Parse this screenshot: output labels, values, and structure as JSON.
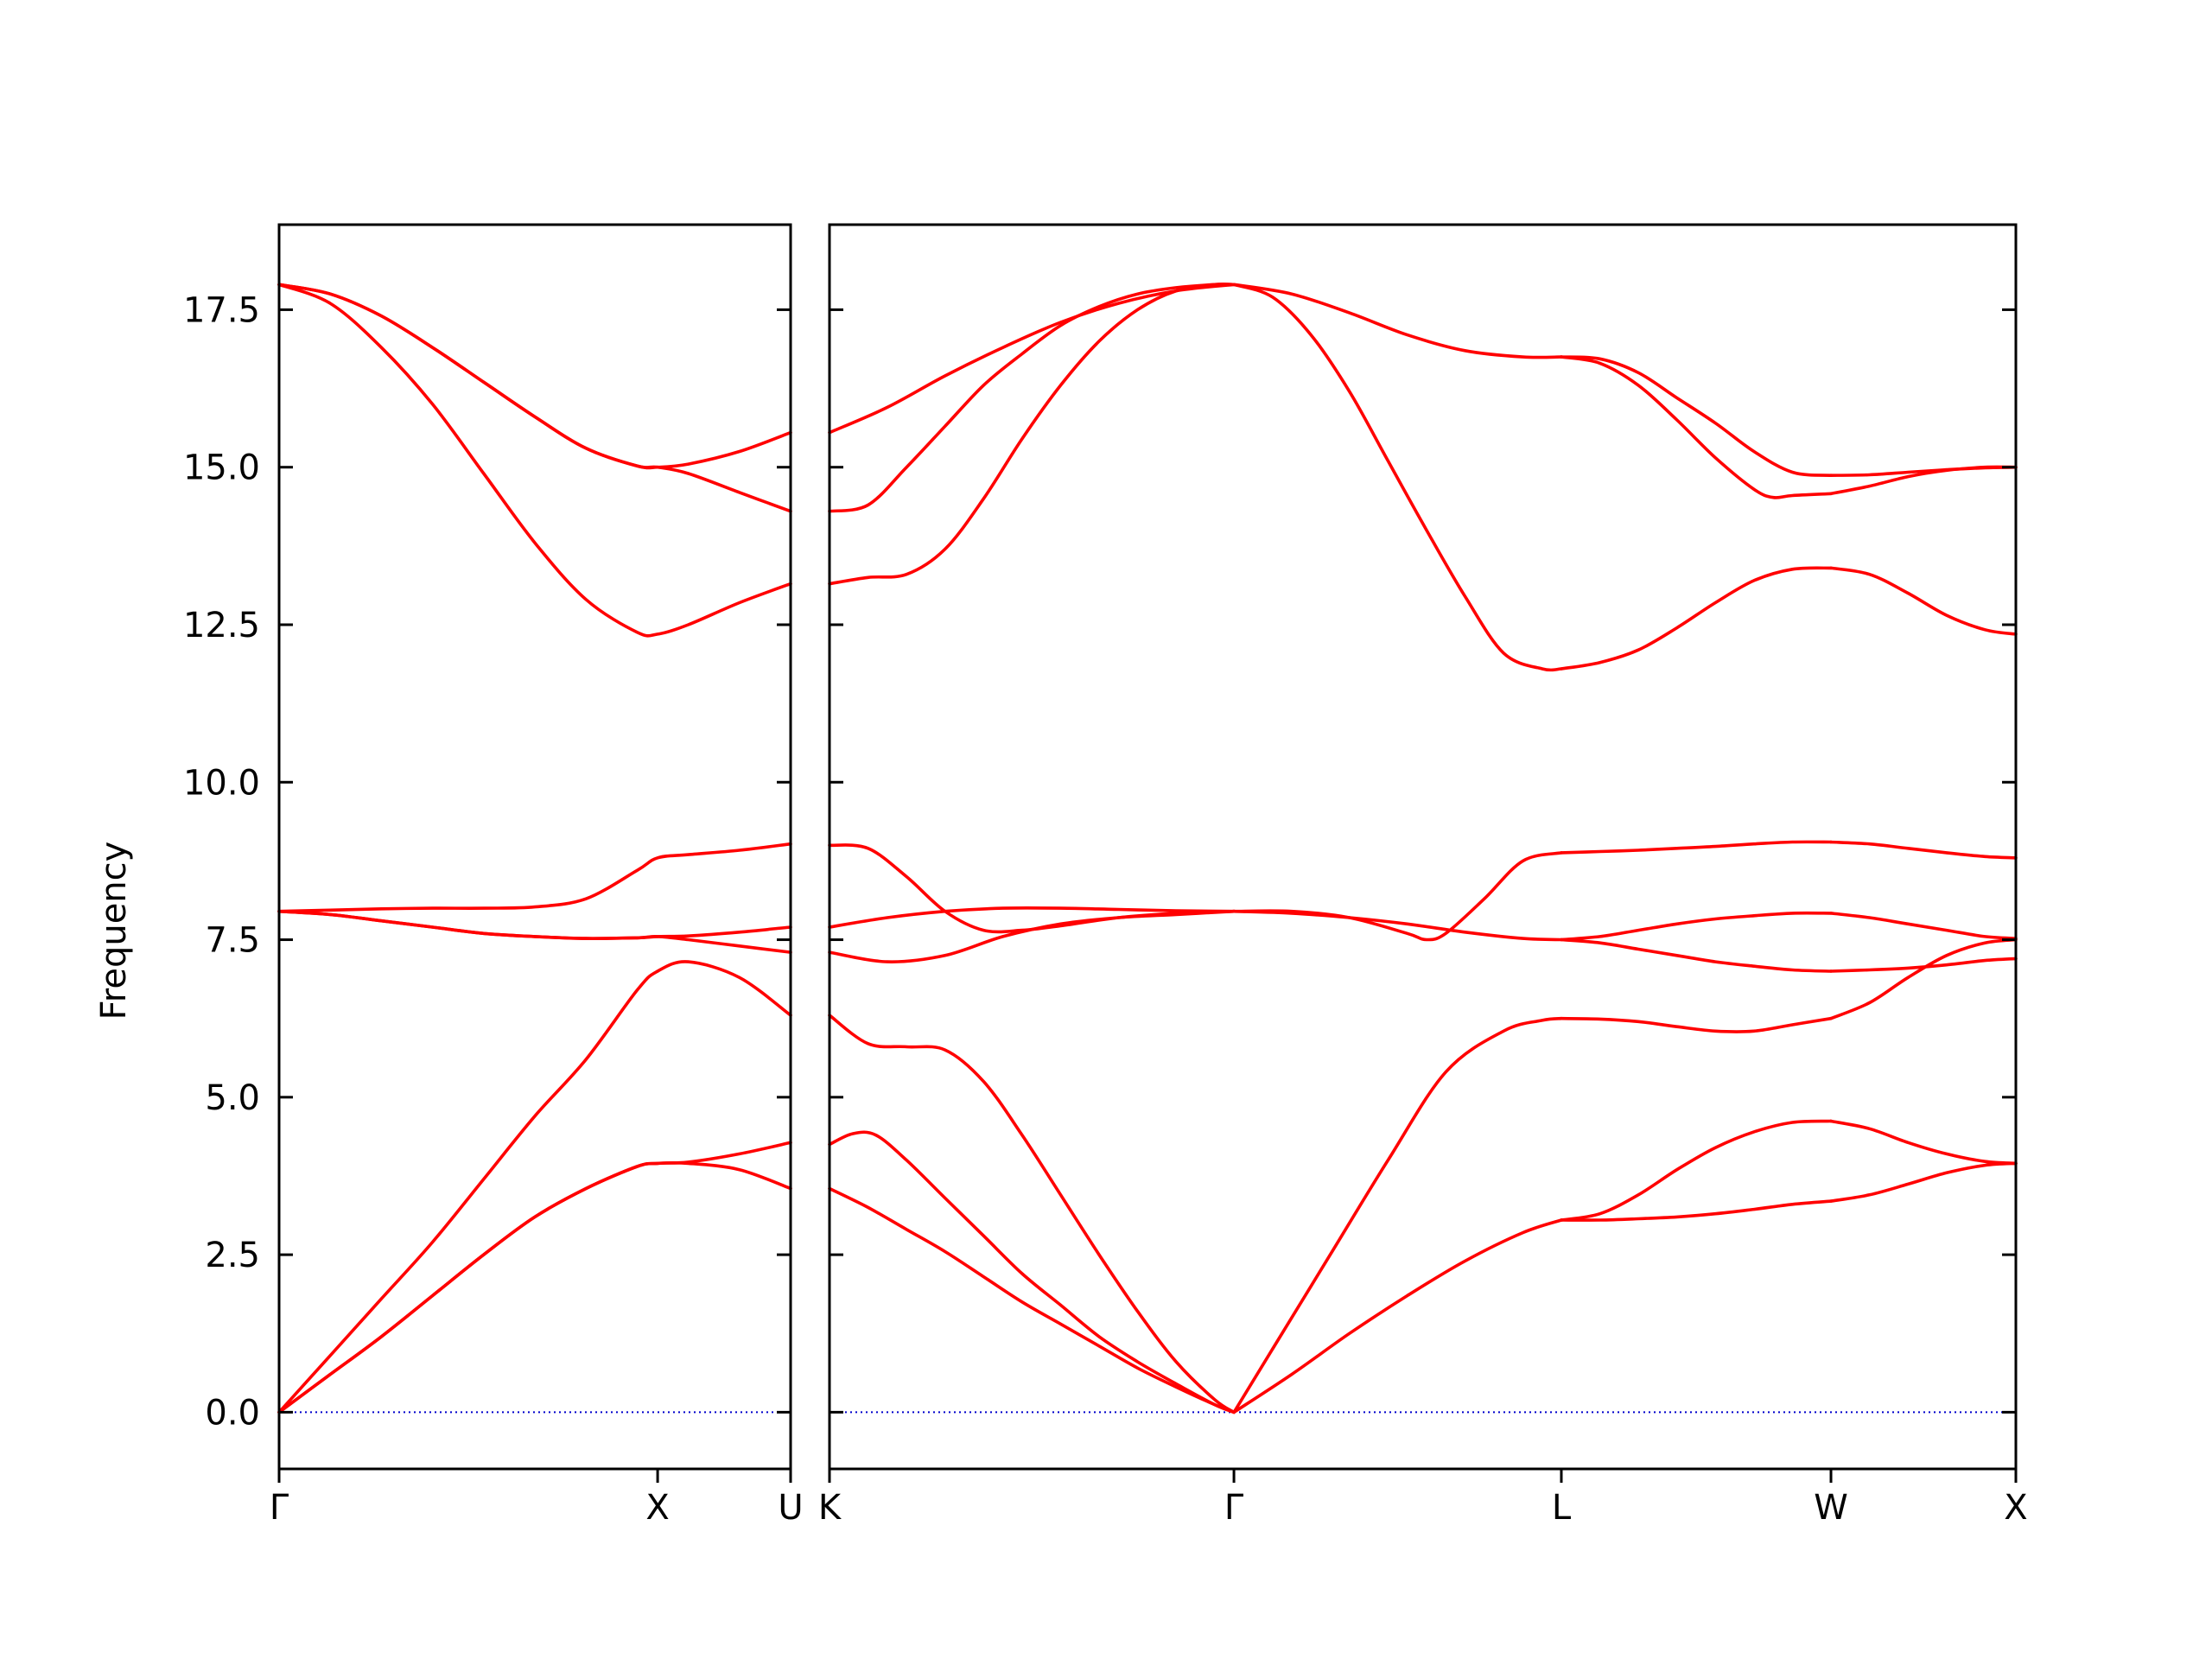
{
  "chart_data": {
    "type": "line",
    "ylabel": "Frequency",
    "ylim": [
      -0.9,
      18.85
    ],
    "yticks": [
      "0.0",
      "2.5",
      "5.0",
      "7.5",
      "10.0",
      "12.5",
      "15.0",
      "17.5"
    ],
    "yticks_values": [
      0,
      2.5,
      5,
      7.5,
      10,
      12.5,
      15,
      17.5
    ],
    "band_color": "#ff0000",
    "zero_line_color": "#0000cc",
    "grid": false,
    "legend": "none",
    "panels": [
      {
        "name": "panel-gamma-x-u",
        "xlim": [
          0,
          1
        ],
        "xticks": [
          {
            "label": "Γ",
            "x": 0
          },
          {
            "label": "X",
            "x": 0.74
          },
          {
            "label": "U",
            "x": 1
          }
        ],
        "bands": [
          {
            "x": [
              0,
              0.1,
              0.2,
              0.3,
              0.4,
              0.5,
              0.6,
              0.7,
              0.74,
              0.8,
              0.9,
              1.0
            ],
            "y": [
              0,
              0.9,
              1.8,
              2.7,
              3.7,
              4.7,
              5.6,
              6.7,
              7.0,
              7.15,
              6.9,
              6.3
            ]
          },
          {
            "x": [
              0,
              0.1,
              0.2,
              0.3,
              0.4,
              0.5,
              0.6,
              0.7,
              0.74,
              0.8,
              0.9,
              1.0
            ],
            "y": [
              0,
              0.6,
              1.2,
              1.85,
              2.5,
              3.1,
              3.55,
              3.9,
              3.95,
              3.95,
              3.85,
              3.55
            ]
          },
          {
            "x": [
              0,
              0.1,
              0.2,
              0.3,
              0.4,
              0.5,
              0.6,
              0.7,
              0.74,
              0.8,
              0.9,
              1.0
            ],
            "y": [
              0,
              0.6,
              1.2,
              1.85,
              2.5,
              3.1,
              3.55,
              3.9,
              3.95,
              3.97,
              4.1,
              4.28
            ]
          },
          {
            "x": [
              0,
              0.1,
              0.2,
              0.3,
              0.4,
              0.5,
              0.6,
              0.7,
              0.74,
              0.8,
              0.9,
              1.0
            ],
            "y": [
              7.95,
              7.9,
              7.8,
              7.7,
              7.6,
              7.55,
              7.52,
              7.53,
              7.55,
              7.56,
              7.62,
              7.7
            ]
          },
          {
            "x": [
              0,
              0.1,
              0.2,
              0.3,
              0.4,
              0.5,
              0.6,
              0.7,
              0.74,
              0.8,
              0.9,
              1.0
            ],
            "y": [
              7.95,
              7.9,
              7.8,
              7.7,
              7.6,
              7.55,
              7.52,
              7.53,
              7.55,
              7.5,
              7.4,
              7.3
            ]
          },
          {
            "x": [
              0,
              0.1,
              0.2,
              0.3,
              0.4,
              0.5,
              0.6,
              0.7,
              0.74,
              0.8,
              0.9,
              1.0
            ],
            "y": [
              7.95,
              7.97,
              7.99,
              8.0,
              8.0,
              8.02,
              8.15,
              8.6,
              8.8,
              8.85,
              8.92,
              9.02
            ]
          },
          {
            "x": [
              0,
              0.1,
              0.2,
              0.3,
              0.4,
              0.5,
              0.6,
              0.7,
              0.74,
              0.8,
              0.9,
              1.0
            ],
            "y": [
              17.9,
              17.6,
              16.9,
              16.0,
              14.9,
              13.8,
              12.9,
              12.38,
              12.35,
              12.5,
              12.85,
              13.15
            ]
          },
          {
            "x": [
              0,
              0.1,
              0.2,
              0.3,
              0.4,
              0.5,
              0.6,
              0.7,
              0.74,
              0.8,
              0.9,
              1.0
            ],
            "y": [
              17.9,
              17.75,
              17.4,
              16.9,
              16.35,
              15.8,
              15.3,
              15.02,
              15.0,
              14.9,
              14.6,
              14.3
            ]
          },
          {
            "x": [
              0,
              0.1,
              0.2,
              0.3,
              0.4,
              0.5,
              0.6,
              0.7,
              0.74,
              0.8,
              0.9,
              1.0
            ],
            "y": [
              17.9,
              17.75,
              17.4,
              16.9,
              16.35,
              15.8,
              15.3,
              15.02,
              15.0,
              15.05,
              15.25,
              15.55
            ]
          }
        ]
      },
      {
        "name": "panel-k-gamma-l-w-x",
        "xlim": [
          0,
          3.08
        ],
        "xticks": [
          {
            "label": "K",
            "x": 0
          },
          {
            "label": "Γ",
            "x": 1.05
          },
          {
            "label": "L",
            "x": 1.9
          },
          {
            "label": "W",
            "x": 2.6
          },
          {
            "label": "X",
            "x": 3.08
          }
        ],
        "bands": [
          {
            "x": [
              0,
              0.1,
              0.2,
              0.3,
              0.4,
              0.5,
              0.6,
              0.7,
              0.8,
              0.9,
              1.0,
              1.05
            ],
            "y": [
              3.55,
              3.25,
              2.9,
              2.55,
              2.15,
              1.75,
              1.4,
              1.05,
              0.7,
              0.4,
              0.12,
              0
            ]
          },
          {
            "x": [
              0,
              0.06,
              0.12,
              0.2,
              0.3,
              0.4,
              0.5,
              0.6,
              0.7,
              0.8,
              0.9,
              1.0,
              1.05
            ],
            "y": [
              4.25,
              4.42,
              4.4,
              4.0,
              3.4,
              2.8,
              2.2,
              1.7,
              1.2,
              0.8,
              0.45,
              0.12,
              0
            ]
          },
          {
            "x": [
              0,
              0.1,
              0.2,
              0.3,
              0.4,
              0.5,
              0.6,
              0.7,
              0.8,
              0.9,
              1.0,
              1.05
            ],
            "y": [
              6.3,
              5.85,
              5.8,
              5.75,
              5.25,
              4.4,
              3.45,
              2.5,
              1.6,
              0.8,
              0.2,
              0
            ]
          },
          {
            "x": [
              0,
              0.15,
              0.3,
              0.45,
              0.6,
              0.75,
              0.9,
              1.05
            ],
            "y": [
              7.3,
              7.15,
              7.25,
              7.55,
              7.75,
              7.85,
              7.9,
              7.95
            ]
          },
          {
            "x": [
              0,
              0.15,
              0.3,
              0.45,
              0.6,
              0.75,
              0.9,
              1.05
            ],
            "y": [
              7.7,
              7.85,
              7.95,
              8.0,
              8.0,
              7.98,
              7.96,
              7.95
            ]
          },
          {
            "x": [
              0,
              0.1,
              0.2,
              0.3,
              0.4,
              0.5,
              0.6,
              0.75,
              0.9,
              1.05
            ],
            "y": [
              9.0,
              8.95,
              8.5,
              7.95,
              7.65,
              7.65,
              7.72,
              7.85,
              7.92,
              7.95
            ]
          },
          {
            "x": [
              0,
              0.1,
              0.2,
              0.3,
              0.4,
              0.5,
              0.6,
              0.7,
              0.8,
              0.9,
              1.0,
              1.05
            ],
            "y": [
              13.15,
              13.25,
              13.3,
              13.7,
              14.5,
              15.45,
              16.3,
              17.0,
              17.5,
              17.8,
              17.9,
              17.9
            ]
          },
          {
            "x": [
              0,
              0.1,
              0.2,
              0.3,
              0.4,
              0.5,
              0.6,
              0.7,
              0.8,
              0.9,
              1.0,
              1.05
            ],
            "y": [
              14.3,
              14.4,
              15.0,
              15.65,
              16.3,
              16.8,
              17.25,
              17.55,
              17.75,
              17.85,
              17.9,
              17.9
            ]
          },
          {
            "x": [
              0,
              0.15,
              0.3,
              0.45,
              0.6,
              0.75,
              0.9,
              1.05
            ],
            "y": [
              15.55,
              15.95,
              16.45,
              16.9,
              17.3,
              17.6,
              17.8,
              17.9
            ]
          },
          {
            "x": [
              1.05,
              1.2,
              1.35,
              1.5,
              1.65,
              1.8,
              1.9
            ],
            "y": [
              0,
              0.6,
              1.25,
              1.85,
              2.4,
              2.85,
              3.05
            ]
          },
          {
            "x": [
              1.05,
              1.15,
              1.3,
              1.45,
              1.6,
              1.75,
              1.85,
              1.9
            ],
            "y": [
              0,
              1.0,
              2.5,
              4.0,
              5.4,
              6.05,
              6.22,
              6.25
            ]
          },
          {
            "x": [
              1.05,
              1.2,
              1.35,
              1.5,
              1.55,
              1.6,
              1.7,
              1.8,
              1.9
            ],
            "y": [
              7.95,
              7.95,
              7.85,
              7.6,
              7.5,
              7.6,
              8.15,
              8.75,
              8.88
            ]
          },
          {
            "x": [
              1.05,
              1.2,
              1.35,
              1.5,
              1.65,
              1.8,
              1.9
            ],
            "y": [
              7.95,
              7.92,
              7.85,
              7.75,
              7.62,
              7.52,
              7.5
            ]
          },
          {
            "x": [
              1.05,
              1.15,
              1.25,
              1.35,
              1.45,
              1.55,
              1.65,
              1.75,
              1.85,
              1.9
            ],
            "y": [
              17.9,
              17.7,
              17.1,
              16.2,
              15.1,
              14.0,
              12.95,
              12.05,
              11.8,
              11.8
            ]
          },
          {
            "x": [
              1.05,
              1.2,
              1.35,
              1.5,
              1.65,
              1.8,
              1.9
            ],
            "y": [
              17.9,
              17.75,
              17.45,
              17.1,
              16.85,
              16.75,
              16.75
            ]
          },
          {
            "x": [
              1.9,
              2.0,
              2.1,
              2.2,
              2.3,
              2.4,
              2.5,
              2.6
            ],
            "y": [
              3.05,
              3.05,
              3.07,
              3.1,
              3.15,
              3.22,
              3.3,
              3.35
            ]
          },
          {
            "x": [
              1.9,
              2.0,
              2.1,
              2.2,
              2.3,
              2.4,
              2.5,
              2.6
            ],
            "y": [
              3.05,
              3.15,
              3.45,
              3.85,
              4.2,
              4.45,
              4.6,
              4.62
            ]
          },
          {
            "x": [
              1.9,
              2.0,
              2.1,
              2.2,
              2.3,
              2.4,
              2.5,
              2.6
            ],
            "y": [
              6.25,
              6.24,
              6.2,
              6.12,
              6.05,
              6.05,
              6.15,
              6.25
            ]
          },
          {
            "x": [
              1.9,
              2.0,
              2.1,
              2.2,
              2.3,
              2.4,
              2.5,
              2.6
            ],
            "y": [
              7.5,
              7.45,
              7.35,
              7.25,
              7.15,
              7.08,
              7.02,
              7.0
            ]
          },
          {
            "x": [
              1.9,
              2.0,
              2.1,
              2.2,
              2.3,
              2.4,
              2.5,
              2.6
            ],
            "y": [
              7.5,
              7.55,
              7.65,
              7.75,
              7.83,
              7.88,
              7.92,
              7.92
            ]
          },
          {
            "x": [
              1.9,
              2.0,
              2.1,
              2.2,
              2.3,
              2.4,
              2.5,
              2.6
            ],
            "y": [
              8.88,
              8.9,
              8.92,
              8.95,
              8.98,
              9.02,
              9.05,
              9.05
            ]
          },
          {
            "x": [
              1.9,
              2.0,
              2.1,
              2.2,
              2.3,
              2.4,
              2.5,
              2.6
            ],
            "y": [
              11.8,
              11.9,
              12.1,
              12.45,
              12.85,
              13.2,
              13.38,
              13.4
            ]
          },
          {
            "x": [
              1.9,
              2.0,
              2.1,
              2.2,
              2.3,
              2.4,
              2.45,
              2.5,
              2.6
            ],
            "y": [
              16.75,
              16.65,
              16.3,
              15.75,
              15.15,
              14.65,
              14.52,
              14.55,
              14.58
            ]
          },
          {
            "x": [
              1.9,
              2.0,
              2.1,
              2.2,
              2.3,
              2.4,
              2.5,
              2.6
            ],
            "y": [
              16.75,
              16.72,
              16.5,
              16.1,
              15.7,
              15.25,
              14.92,
              14.87
            ]
          },
          {
            "x": [
              2.6,
              2.7,
              2.8,
              2.9,
              3.0,
              3.08
            ],
            "y": [
              3.35,
              3.45,
              3.62,
              3.8,
              3.92,
              3.95
            ]
          },
          {
            "x": [
              2.6,
              2.7,
              2.8,
              2.9,
              3.0,
              3.08
            ],
            "y": [
              4.62,
              4.5,
              4.28,
              4.1,
              3.98,
              3.95
            ]
          },
          {
            "x": [
              2.6,
              2.7,
              2.8,
              2.9,
              3.0,
              3.08
            ],
            "y": [
              6.25,
              6.5,
              6.9,
              7.25,
              7.45,
              7.5
            ]
          },
          {
            "x": [
              2.6,
              2.7,
              2.8,
              2.9,
              3.0,
              3.08
            ],
            "y": [
              7.0,
              7.02,
              7.05,
              7.1,
              7.17,
              7.2
            ]
          },
          {
            "x": [
              2.6,
              2.7,
              2.8,
              2.9,
              3.0,
              3.08
            ],
            "y": [
              7.92,
              7.85,
              7.75,
              7.65,
              7.55,
              7.52
            ]
          },
          {
            "x": [
              2.6,
              2.7,
              2.8,
              2.9,
              3.0,
              3.08
            ],
            "y": [
              9.05,
              9.02,
              8.95,
              8.88,
              8.82,
              8.8
            ]
          },
          {
            "x": [
              2.6,
              2.7,
              2.8,
              2.9,
              3.0,
              3.08
            ],
            "y": [
              13.4,
              13.3,
              13.0,
              12.65,
              12.42,
              12.35
            ]
          },
          {
            "x": [
              2.6,
              2.7,
              2.8,
              2.9,
              3.0,
              3.08
            ],
            "y": [
              14.58,
              14.7,
              14.85,
              14.95,
              15.0,
              15.0
            ]
          },
          {
            "x": [
              2.6,
              2.7,
              2.8,
              2.9,
              3.0,
              3.08
            ],
            "y": [
              14.87,
              14.88,
              14.92,
              14.96,
              14.99,
              15.0
            ]
          }
        ]
      }
    ]
  }
}
